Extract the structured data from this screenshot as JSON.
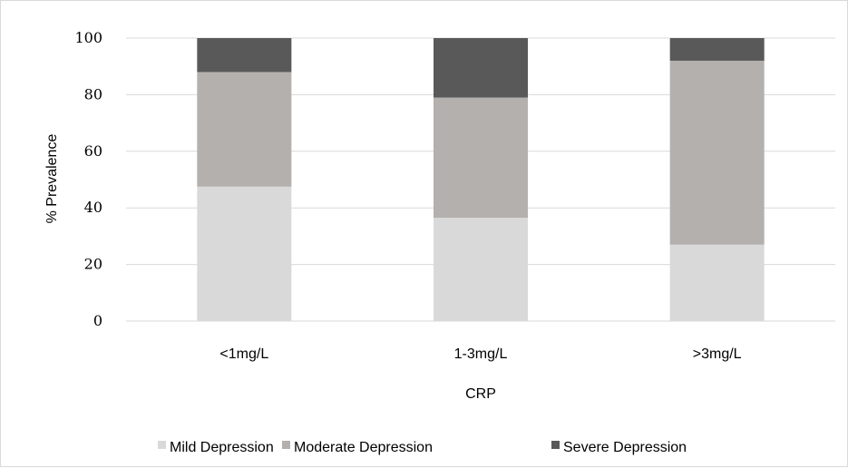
{
  "chart_data": {
    "type": "bar",
    "stacked": true,
    "categories": [
      "<1mg/L",
      "1-3mg/L",
      ">3mg/L"
    ],
    "series": [
      {
        "name": "Mild Depression",
        "values": [
          47.5,
          36.5,
          27
        ],
        "color": "#d9d9d9"
      },
      {
        "name": "Moderate Depression",
        "values": [
          40.5,
          42.5,
          65
        ],
        "color": "#b3b0ae"
      },
      {
        "name": "Severe Depression",
        "values": [
          12,
          21,
          8
        ],
        "color": "#595959"
      }
    ],
    "xlabel": "CRP",
    "ylabel": "% Prevalence",
    "ylim": [
      0,
      100
    ],
    "yticks": [
      0,
      20,
      40,
      60,
      80,
      100
    ],
    "grid": true,
    "legend_position": "bottom"
  }
}
